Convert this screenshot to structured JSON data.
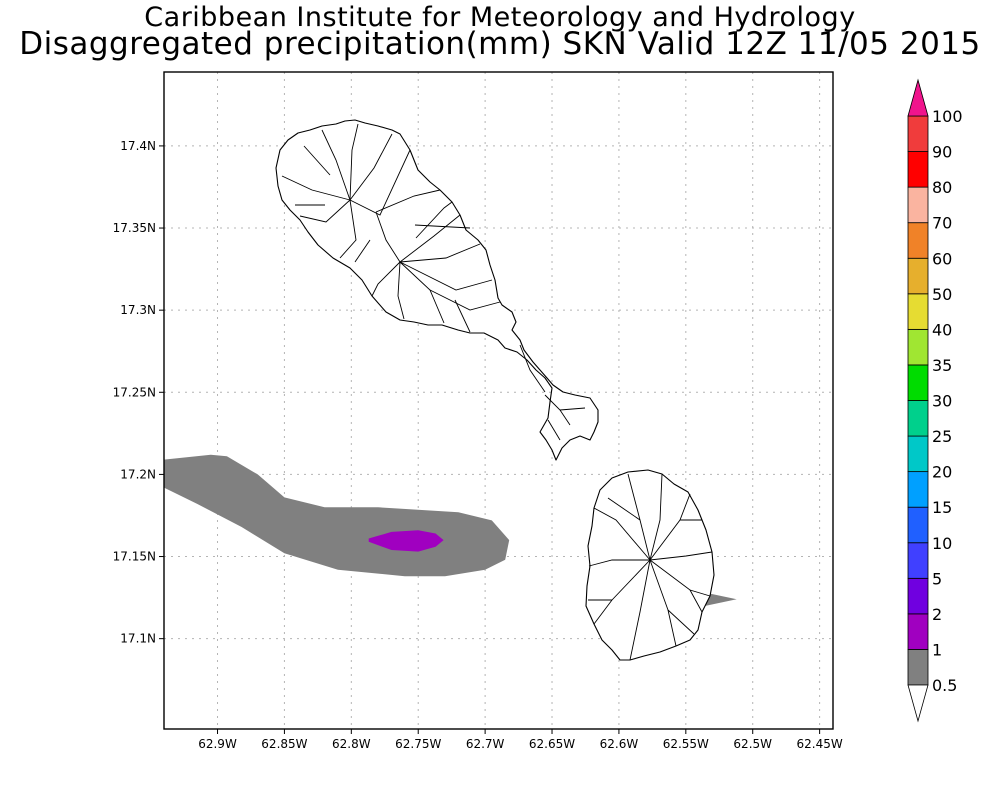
{
  "header": {
    "title": "Caribbean Institute for Meteorology and Hydrology",
    "subtitle": "Disaggregated precipitation(mm) SKN Valid 12Z 11/05 2015"
  },
  "map": {
    "lon_range": [
      -62.94,
      -62.44
    ],
    "lat_range": [
      17.045,
      17.445
    ],
    "x_ticks": [
      {
        "lon": -62.9,
        "label": "62.9W"
      },
      {
        "lon": -62.85,
        "label": "62.85W"
      },
      {
        "lon": -62.8,
        "label": "62.8W"
      },
      {
        "lon": -62.75,
        "label": "62.75W"
      },
      {
        "lon": -62.7,
        "label": "62.7W"
      },
      {
        "lon": -62.65,
        "label": "62.65W"
      },
      {
        "lon": -62.6,
        "label": "62.6W"
      },
      {
        "lon": -62.55,
        "label": "62.55W"
      },
      {
        "lon": -62.5,
        "label": "62.5W"
      },
      {
        "lon": -62.45,
        "label": "62.45W"
      }
    ],
    "y_ticks": [
      {
        "lat": 17.4,
        "label": "17.4N"
      },
      {
        "lat": 17.35,
        "label": "17.35N"
      },
      {
        "lat": 17.3,
        "label": "17.3N"
      },
      {
        "lat": 17.25,
        "label": "17.25N"
      },
      {
        "lat": 17.2,
        "label": "17.2N"
      },
      {
        "lat": 17.15,
        "label": "17.15N"
      },
      {
        "lat": 17.1,
        "label": "17.1N"
      }
    ],
    "grid": true
  },
  "legend": {
    "levels": [
      "0.5",
      "1",
      "2",
      "5",
      "10",
      "15",
      "20",
      "25",
      "30",
      "35",
      "40",
      "50",
      "60",
      "70",
      "80",
      "90",
      "100"
    ],
    "colors": [
      "#808080",
      "#a000c0",
      "#7000e0",
      "#4040ff",
      "#2060ff",
      "#00a0ff",
      "#00c8c8",
      "#00d08c",
      "#00dc00",
      "#a0e632",
      "#e6dc32",
      "#e6af2d",
      "#f08228",
      "#fab4a0",
      "#ff0000",
      "#f03c3c"
    ],
    "top_arrow_color": "#f0148c"
  },
  "chart_data": {
    "type": "contour-map",
    "title": "Caribbean Institute for Meteorology and Hydrology",
    "subtitle": "Disaggregated precipitation(mm) SKN Valid 12Z 11/05 2015",
    "xlabel": "",
    "ylabel": "",
    "xlim": [
      -62.94,
      -62.44
    ],
    "ylim": [
      17.045,
      17.445
    ],
    "grid": true,
    "legend_position": "right",
    "shaded_levels_mm": [
      0.5,
      1,
      2,
      5,
      10,
      15,
      20,
      25,
      30,
      35,
      40,
      50,
      60,
      70,
      80,
      90,
      100
    ],
    "regions": [
      {
        "name": "0.5-1 mm",
        "color": "#808080",
        "lon": [
          -62.94,
          -62.905,
          -62.893,
          -62.87,
          -62.85,
          -62.82,
          -62.78,
          -62.72,
          -62.695,
          -62.682,
          -62.685,
          -62.7,
          -62.73,
          -62.76,
          -62.81,
          -62.85,
          -62.882,
          -62.915,
          -62.94
        ],
        "lat": [
          17.209,
          17.212,
          17.211,
          17.2,
          17.186,
          17.18,
          17.18,
          17.177,
          17.172,
          17.16,
          17.148,
          17.142,
          17.138,
          17.138,
          17.142,
          17.152,
          17.168,
          17.182,
          17.192
        ]
      },
      {
        "name": "1-2 mm",
        "color": "#a000c0",
        "lon": [
          -62.787,
          -62.77,
          -62.75,
          -62.737,
          -62.731,
          -62.737,
          -62.75,
          -62.77,
          -62.787
        ],
        "lat": [
          17.161,
          17.165,
          17.166,
          17.164,
          17.16,
          17.156,
          17.153,
          17.154,
          17.159
        ]
      },
      {
        "name": "0.5-1 mm (east)",
        "color": "#808080",
        "lon": [
          -62.573,
          -62.555,
          -62.535,
          -62.512,
          -62.535,
          -62.56,
          -62.573
        ],
        "lat": [
          17.127,
          17.129,
          17.128,
          17.124,
          17.12,
          17.121,
          17.124
        ]
      }
    ]
  }
}
